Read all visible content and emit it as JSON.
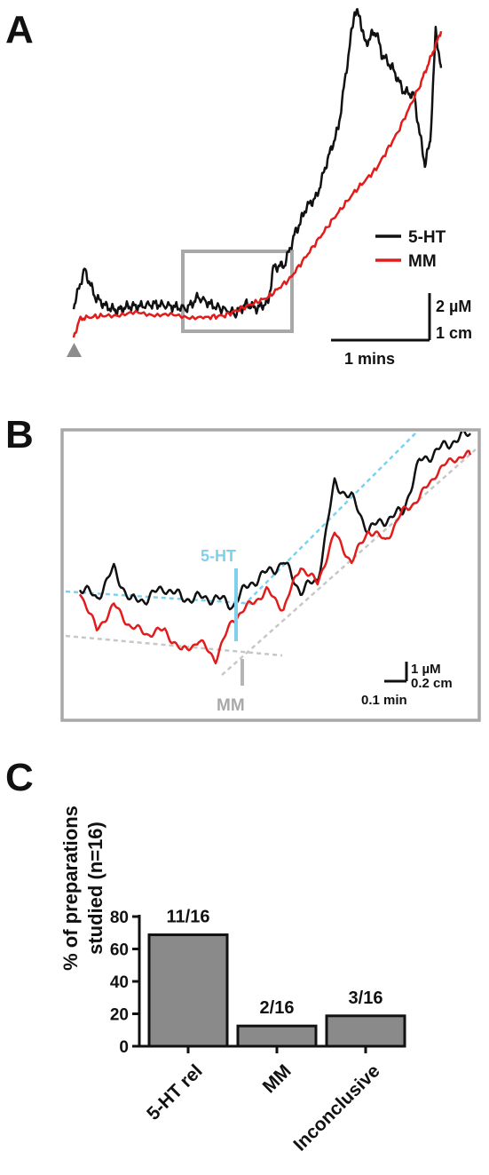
{
  "colors": {
    "serotonin": "#111111",
    "mm": "#e21b1b",
    "box": "#a8a8a8",
    "cyan": "#7fd0ec",
    "gray_label": "#a9a9a9",
    "bar": "#8a8a8a",
    "marker": "#8c8c8c"
  },
  "panels": {
    "a": {
      "letter": "A"
    },
    "b": {
      "letter": "B"
    },
    "c": {
      "letter": "C"
    }
  },
  "chart_data": [
    {
      "type": "line",
      "panel": "A",
      "legend": {
        "placement": "right",
        "items": [
          "5-HT",
          "MM"
        ]
      },
      "series": [
        {
          "name": "5-HT",
          "color": "#111111",
          "x": [
            0,
            0.1,
            0.2,
            0.3,
            0.4,
            0.5,
            0.6,
            0.75,
            0.9,
            1.05,
            1.15,
            1.3,
            1.5,
            1.6,
            1.7,
            1.8,
            1.85,
            1.95,
            2.05,
            2.1,
            2.15,
            2.25,
            2.35,
            2.45,
            2.55,
            2.6,
            2.65,
            2.7,
            2.75,
            2.8,
            2.85,
            2.95,
            3.05,
            3.15,
            3.2,
            3.25,
            3.3,
            3.35,
            3.4
          ],
          "y": [
            0.7,
            1.5,
            0.9,
            0.7,
            0.6,
            0.7,
            0.7,
            0.75,
            0.7,
            0.65,
            0.9,
            0.7,
            0.55,
            0.75,
            0.65,
            0.8,
            1.55,
            1.6,
            2.3,
            2.55,
            2.85,
            3.1,
            3.9,
            4.6,
            6.3,
            7.15,
            7.0,
            6.4,
            6.6,
            6.7,
            6.2,
            5.9,
            5.4,
            5.3,
            4.5,
            3.8,
            4.3,
            6.7,
            5.9
          ]
        },
        {
          "name": "MM",
          "color": "#e21b1b",
          "x": [
            0,
            0.05,
            0.1,
            0.3,
            0.6,
            0.9,
            1.2,
            1.4,
            1.6,
            1.8,
            2.0,
            2.2,
            2.4,
            2.6,
            2.8,
            3.0,
            3.2,
            3.3,
            3.4
          ],
          "y": [
            0.0,
            0.4,
            0.45,
            0.5,
            0.55,
            0.5,
            0.45,
            0.5,
            0.7,
            0.9,
            1.3,
            1.95,
            2.6,
            3.2,
            3.7,
            4.5,
            5.5,
            6.1,
            6.7
          ]
        }
      ],
      "scale_bars": {
        "y_label": "2 µM",
        "y_label_2": "1 cm",
        "x_label": "1 mins"
      },
      "stimulus_marker": "triangle at t=0",
      "inset_box": {
        "x_range": [
          1.15,
          2.25
        ],
        "description": "region shown enlarged in panel B"
      }
    },
    {
      "type": "line",
      "panel": "B",
      "series": [
        {
          "name": "5-HT",
          "color": "#111111",
          "x": [
            0,
            0.05,
            0.1,
            0.15,
            0.2,
            0.25,
            0.3,
            0.35,
            0.4,
            0.45,
            0.5,
            0.55,
            0.6,
            0.65,
            0.7,
            0.75,
            0.8,
            0.85,
            0.9,
            0.95,
            1.0,
            1.05,
            1.1,
            1.15
          ],
          "y": [
            -0.3,
            -0.6,
            0.2,
            -0.7,
            -0.6,
            -0.3,
            -0.6,
            -0.6,
            -0.6,
            -0.8,
            -0.2,
            0.1,
            0.4,
            -0.4,
            -0.1,
            2.6,
            2.2,
            1.3,
            1.6,
            1.8,
            3.2,
            3.5,
            3.8,
            4.0
          ]
        },
        {
          "name": "MM",
          "color": "#e21b1b",
          "x": [
            0,
            0.05,
            0.1,
            0.15,
            0.2,
            0.25,
            0.3,
            0.35,
            0.4,
            0.45,
            0.5,
            0.55,
            0.6,
            0.65,
            0.7,
            0.75,
            0.8,
            0.85,
            0.9,
            0.95,
            1.0,
            1.05,
            1.1,
            1.15
          ],
          "y": [
            -0.4,
            -1.5,
            -0.8,
            -1.4,
            -1.6,
            -1.5,
            -2.1,
            -1.8,
            -2.3,
            -1.2,
            -0.8,
            -0.4,
            -0.9,
            0.3,
            -0.2,
            1.2,
            0.4,
            1.3,
            1.0,
            1.8,
            2.2,
            2.9,
            3.3,
            3.4
          ]
        }
      ],
      "annotations": [
        {
          "label": "5-HT",
          "color": "#7fd0ec",
          "x": 0.36
        },
        {
          "label": "MM",
          "color": "#a9a9a9",
          "x": 0.36
        }
      ],
      "scale_bars": {
        "y_label": "1 µM",
        "y_label_2": "0.2 cm",
        "x_label": "0.1 min"
      }
    },
    {
      "type": "bar",
      "panel": "C",
      "categories": [
        "5-HT rel",
        "MM",
        "Inconclusive"
      ],
      "values": [
        68.75,
        12.5,
        18.75
      ],
      "data_labels": [
        "11/16",
        "2/16",
        "3/16"
      ],
      "ylabel": "% of preparations studied (n=16)",
      "ylabel_line1": "% of preparations",
      "ylabel_line2": "studied (n=16)",
      "ylim": [
        0,
        80
      ],
      "yticks": [
        "0",
        "20",
        "40",
        "60",
        "80"
      ],
      "bar_color": "#8a8a8a",
      "grid": false
    }
  ]
}
